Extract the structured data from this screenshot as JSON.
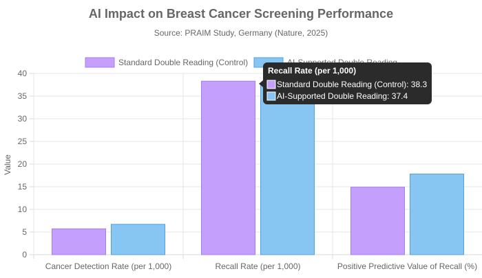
{
  "chart_data": {
    "type": "bar",
    "title": "AI Impact on Breast Cancer Screening Performance",
    "subtitle": "Source: PRAIM Study, Germany (Nature, 2025)",
    "xlabel": "",
    "ylabel": "Value",
    "ylim": [
      0,
      40
    ],
    "yticks": [
      0,
      5,
      10,
      15,
      20,
      25,
      30,
      35,
      40
    ],
    "grid": true,
    "legend_position": "top",
    "categories": [
      "Cancer Detection Rate (per 1,000)",
      "Recall Rate (per 1,000)",
      "Positive Predictive Value of Recall (%)"
    ],
    "series": [
      {
        "name": "Standard Double Reading (Control)",
        "values": [
          5.7,
          38.3,
          14.9
        ],
        "fill": "#c4a0fc",
        "stroke": "#a57cf0"
      },
      {
        "name": "AI-Supported Double Reading",
        "values": [
          6.7,
          37.4,
          17.8
        ],
        "fill": "#87c6f2",
        "stroke": "#4fa2de"
      }
    ],
    "tooltip": {
      "category_index": 1,
      "title": "Recall Rate (per 1,000)",
      "lines": [
        "Standard Double Reading (Control): 38.3",
        "AI-Supported Double Reading: 37.4"
      ]
    }
  }
}
